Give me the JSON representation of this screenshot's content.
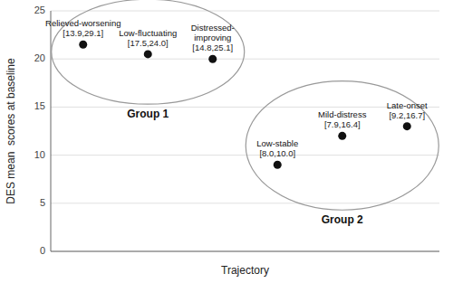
{
  "chart_data": {
    "type": "dot",
    "xlabel": "Trajectory",
    "ylabel": "DES mean  scores at baseline",
    "categories": [
      "Relieved-worsening",
      "Low-fluctuating",
      "Distressed-\nimproving",
      "Low-stable",
      "Mild-distress",
      "Late-onset"
    ],
    "values": [
      21.5,
      20.5,
      20.0,
      9.0,
      12.0,
      13.0
    ],
    "ci_labels": [
      "[13.9,29.1]",
      "[17.5,24.0]",
      "[14.8,25.1]",
      "[8.0,10.0]",
      "[7.9,16.4]",
      "[9.2,16.7]"
    ],
    "groups": [
      1,
      1,
      1,
      2,
      2,
      2
    ],
    "group_labels": [
      "Group 1",
      "Group 2"
    ],
    "color": "#111111",
    "ylim": [
      0,
      25
    ],
    "yticks": [
      0,
      5,
      10,
      15,
      20,
      25
    ],
    "grid": true,
    "tick_labels": "y"
  }
}
